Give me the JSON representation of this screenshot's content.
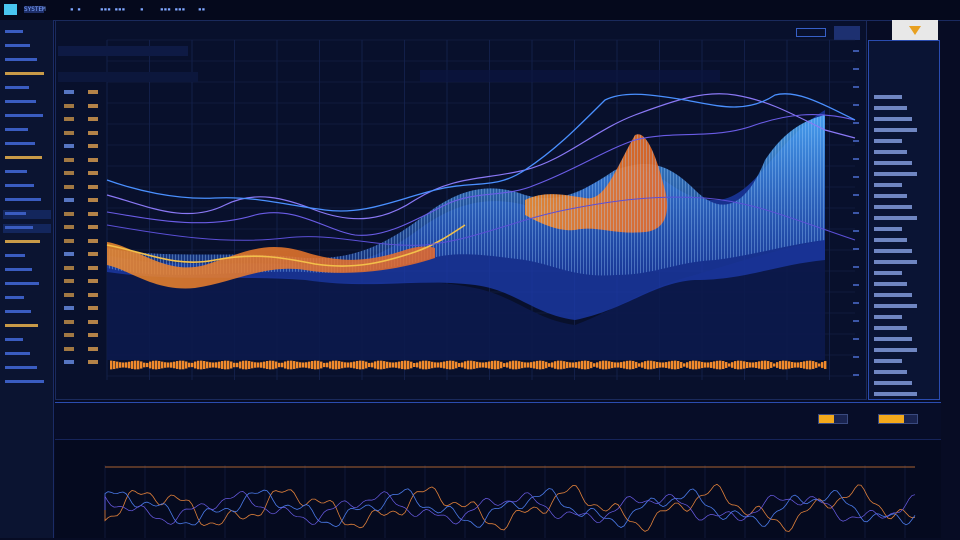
{
  "topbar": {
    "title": "SYSTEM",
    "items": [
      "",
      ""
    ]
  },
  "sidebar": {
    "items": [
      "",
      "",
      "",
      "",
      "",
      "",
      "",
      "",
      "",
      "",
      "",
      "",
      "",
      "",
      "",
      "",
      "",
      "",
      "",
      "",
      "",
      "",
      "",
      "",
      "",
      ""
    ]
  },
  "main": {
    "tabs": [],
    "subtitle": "",
    "row_labels": [],
    "value_labels": [],
    "bottom_labels": []
  },
  "right_panel": {
    "header": "",
    "items": []
  },
  "mid_strip": {
    "left_labels": [],
    "progress": [
      0.55,
      0.65
    ]
  },
  "colors": {
    "background": "#070c24",
    "panel": "#0b1431",
    "accent_orange": "#f08a2c",
    "accent_blue": "#3b8fe0",
    "accent_violet": "#7b6cf0",
    "progress": "#f3a91c"
  },
  "icons": {
    "logo": "app-logo-icon",
    "dropdown": "triangle-down-icon"
  }
}
